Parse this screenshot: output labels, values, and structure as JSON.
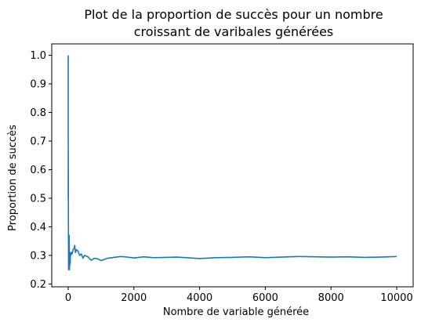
{
  "chart_data": {
    "type": "line",
    "title_lines": [
      "Plot de la proportion de succès pour un nombre",
      "croissant de varibales générées"
    ],
    "xlabel": "Nombre de variable générée",
    "ylabel": "Proportion de succès",
    "xlim": [
      -500,
      10500
    ],
    "ylim": [
      0.19,
      1.04
    ],
    "xticks": [
      0,
      2000,
      4000,
      6000,
      8000,
      10000
    ],
    "xtick_labels": [
      "0",
      "2000",
      "4000",
      "6000",
      "8000",
      "10000"
    ],
    "yticks": [
      0.2,
      0.3,
      0.4,
      0.5,
      0.6,
      0.7,
      0.8,
      0.9,
      1.0
    ],
    "ytick_labels": [
      "0.2",
      "0.3",
      "0.4",
      "0.5",
      "0.6",
      "0.7",
      "0.8",
      "0.9",
      "1.0"
    ],
    "grid": false,
    "color": "#1f77b4",
    "series": [
      {
        "x": [
          1,
          2,
          3,
          4,
          5,
          6,
          8,
          10,
          12,
          15,
          18,
          20,
          25,
          30,
          35,
          40,
          50,
          60,
          70,
          80,
          100,
          120,
          150,
          180,
          200,
          220,
          250,
          300,
          350,
          400,
          450,
          500,
          600,
          700,
          800,
          900,
          1000,
          1200,
          1400,
          1600,
          1800,
          2000,
          2300,
          2600,
          3000,
          3300,
          3600,
          4000,
          4500,
          5000,
          5500,
          6000,
          6500,
          7000,
          7500,
          8000,
          8500,
          9000,
          9500,
          10000
        ],
        "y": [
          1.0,
          0.5,
          0.67,
          0.5,
          0.6,
          0.5,
          0.38,
          0.3,
          0.25,
          0.33,
          0.28,
          0.25,
          0.32,
          0.37,
          0.3,
          0.25,
          0.3,
          0.27,
          0.31,
          0.3,
          0.31,
          0.305,
          0.32,
          0.325,
          0.335,
          0.31,
          0.32,
          0.315,
          0.3,
          0.305,
          0.29,
          0.3,
          0.295,
          0.283,
          0.29,
          0.288,
          0.282,
          0.29,
          0.293,
          0.296,
          0.294,
          0.291,
          0.295,
          0.292,
          0.293,
          0.294,
          0.292,
          0.289,
          0.292,
          0.293,
          0.295,
          0.292,
          0.294,
          0.296,
          0.295,
          0.294,
          0.295,
          0.293,
          0.294,
          0.296
        ]
      }
    ]
  }
}
